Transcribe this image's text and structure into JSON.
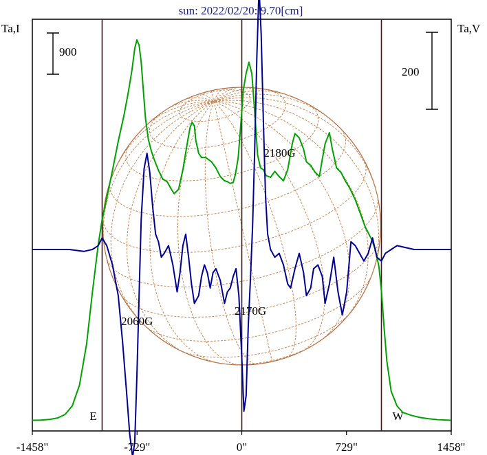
{
  "chart_data": {
    "type": "line",
    "title": "sun: 2022/02/20: 9.70[cm]",
    "left_axis_label": "Ta,I",
    "right_axis_label": "Ta,V",
    "left_scale_bar": "900",
    "right_scale_bar": "200",
    "x_ticks": [
      {
        "value": -1458,
        "label": "-1458\""
      },
      {
        "value": -729,
        "label": "-729\""
      },
      {
        "value": 0,
        "label": "0\""
      },
      {
        "value": 729,
        "label": "729\""
      },
      {
        "value": 1458,
        "label": "1458\""
      }
    ],
    "xlim": [
      -1458,
      1458
    ],
    "limb_markers": [
      {
        "x": -972,
        "label": "E"
      },
      {
        "x": 972,
        "label": "W"
      }
    ],
    "annotations": [
      {
        "text": "2060G",
        "x": -729,
        "series": "V"
      },
      {
        "text": "2170G",
        "x": 60,
        "series": "V"
      },
      {
        "text": "2180G",
        "x": 120,
        "series": "I"
      }
    ],
    "series": [
      {
        "key": "I",
        "color": "#00a000",
        "x": [
          -1458,
          -1400,
          -1340,
          -1280,
          -1230,
          -1180,
          -1130,
          -1080,
          -1040,
          -1000,
          -972,
          -940,
          -900,
          -860,
          -820,
          -790,
          -765,
          -745,
          -730,
          -715,
          -700,
          -685,
          -670,
          -650,
          -630,
          -610,
          -580,
          -550,
          -520,
          -490,
          -470,
          -440,
          -410,
          -380,
          -360,
          -345,
          -330,
          -320,
          -300,
          -280,
          -250,
          -210,
          -180,
          -150,
          -120,
          -100,
          -80,
          -60,
          -45,
          -25,
          -5,
          10,
          30,
          50,
          70,
          90,
          110,
          130,
          150,
          170,
          200,
          230,
          260,
          290,
          320,
          350,
          370,
          400,
          430,
          450,
          480,
          510,
          540,
          560,
          580,
          610,
          630,
          660,
          690,
          720,
          750,
          790,
          830,
          860,
          900,
          930,
          955,
          972,
          990,
          1010,
          1040,
          1080,
          1120,
          1180,
          1240,
          1300,
          1360,
          1420,
          1458
        ],
        "values": [
          12,
          14,
          22,
          40,
          80,
          180,
          420,
          900,
          1500,
          2050,
          2350,
          2600,
          2920,
          3260,
          3560,
          3830,
          4080,
          4340,
          4440,
          4380,
          4180,
          3850,
          3520,
          3280,
          3150,
          3050,
          2920,
          2820,
          2790,
          2700,
          2650,
          2700,
          2930,
          3230,
          3420,
          3480,
          3440,
          3270,
          3120,
          3070,
          3070,
          3020,
          2950,
          2850,
          2800,
          2790,
          2770,
          2780,
          2870,
          3070,
          3500,
          3850,
          4050,
          4180,
          4050,
          3600,
          3100,
          2950,
          2930,
          2860,
          2840,
          2910,
          2850,
          2800,
          2930,
          3220,
          3350,
          3300,
          3170,
          3020,
          2980,
          2900,
          2850,
          3050,
          3230,
          3360,
          3170,
          2950,
          2900,
          2800,
          2720,
          2580,
          2400,
          2260,
          2130,
          2000,
          1800,
          1520,
          1100,
          700,
          350,
          180,
          105,
          70,
          45,
          30,
          20,
          15,
          12
        ]
      },
      {
        "key": "V",
        "color": "#000090",
        "x": [
          -1458,
          -1300,
          -1200,
          -1100,
          -1040,
          -1000,
          -972,
          -940,
          -900,
          -860,
          -830,
          -800,
          -780,
          -760,
          -745,
          -730,
          -715,
          -700,
          -680,
          -660,
          -640,
          -620,
          -600,
          -580,
          -560,
          -540,
          -510,
          -480,
          -450,
          -430,
          -410,
          -390,
          -370,
          -350,
          -330,
          -300,
          -280,
          -260,
          -240,
          -220,
          -200,
          -180,
          -150,
          -120,
          -100,
          -80,
          -60,
          -40,
          -20,
          0,
          15,
          30,
          45,
          60,
          75,
          90,
          105,
          120,
          135,
          150,
          165,
          180,
          200,
          230,
          260,
          290,
          320,
          340,
          370,
          400,
          430,
          450,
          480,
          500,
          530,
          560,
          580,
          610,
          640,
          670,
          700,
          730,
          760,
          790,
          820,
          850,
          880,
          910,
          940,
          972,
          1000,
          1040,
          1080,
          1200,
          1300,
          1458
        ],
        "values": [
          0,
          0,
          0,
          -5,
          0,
          10,
          30,
          10,
          -40,
          -120,
          -240,
          -380,
          -480,
          -540,
          -500,
          -330,
          -120,
          80,
          210,
          250,
          200,
          110,
          40,
          20,
          -20,
          -10,
          10,
          -40,
          -110,
          -60,
          10,
          40,
          -20,
          -90,
          -140,
          -120,
          -70,
          -40,
          -60,
          -100,
          -60,
          -50,
          -80,
          -140,
          -110,
          -100,
          -70,
          -50,
          -120,
          -280,
          -420,
          -380,
          -200,
          -80,
          60,
          260,
          500,
          680,
          560,
          340,
          140,
          40,
          0,
          -20,
          -10,
          -40,
          -90,
          -100,
          -50,
          -10,
          -60,
          -120,
          -100,
          -50,
          -40,
          -70,
          -140,
          -90,
          -20,
          -110,
          -170,
          -110,
          20,
          10,
          -10,
          -30,
          -10,
          30,
          -20,
          -30,
          -10,
          0,
          10,
          0,
          0,
          0
        ]
      }
    ]
  }
}
